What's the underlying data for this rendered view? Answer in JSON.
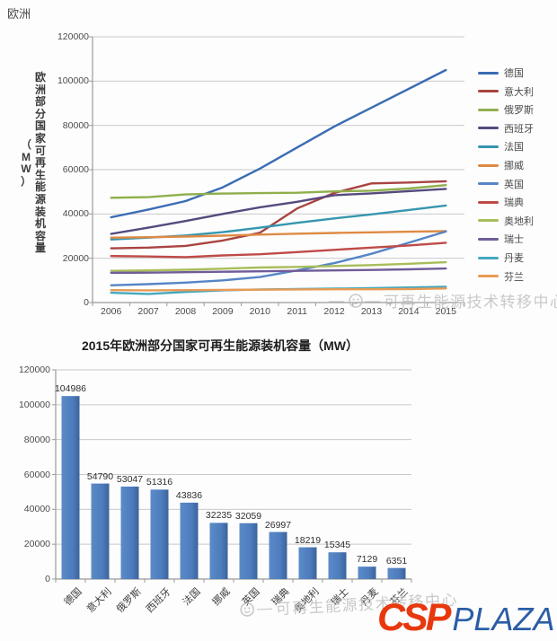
{
  "page": {
    "region_label": "欧洲"
  },
  "watermark": {
    "dash": "—",
    "text": "可再生能源技术转移中心"
  },
  "brand": {
    "csp": "CSP",
    "plaza": "PLAZA",
    "csp_color": "#E8380D",
    "plaza_color": "#2B5DA7"
  },
  "chart_data": [
    {
      "type": "line",
      "title": "",
      "ylabel": "欧洲部分国家可再生能源装机容量",
      "ylabel_unit": "（MW）",
      "x": [
        "2006",
        "2007",
        "2008",
        "2009",
        "2010",
        "2011",
        "2012",
        "2013",
        "2014",
        "2015"
      ],
      "ylim": [
        0,
        120000
      ],
      "ytick_step": 20000,
      "grid": true,
      "legend_position": "right",
      "series": [
        {
          "name": "德国",
          "color": "#3B6CB4",
          "values": [
            38500,
            42000,
            45800,
            52000,
            60500,
            70000,
            79500,
            88000,
            96500,
            104986
          ]
        },
        {
          "name": "意大利",
          "color": "#A94441",
          "values": [
            24500,
            24800,
            25600,
            28000,
            31500,
            42500,
            49500,
            53800,
            54200,
            54790
          ]
        },
        {
          "name": "俄罗斯",
          "color": "#8FAF4C",
          "values": [
            47300,
            47600,
            48800,
            49200,
            49400,
            49600,
            50200,
            50500,
            51500,
            53047
          ]
        },
        {
          "name": "西班牙",
          "color": "#564A7D",
          "values": [
            31000,
            33800,
            36800,
            40000,
            43000,
            45500,
            48500,
            49300,
            50300,
            51316
          ]
        },
        {
          "name": "法国",
          "color": "#3596AE",
          "values": [
            28500,
            29300,
            30300,
            31800,
            33800,
            36000,
            38000,
            39800,
            41800,
            43836
          ]
        },
        {
          "name": "挪威",
          "color": "#DE8A44",
          "values": [
            29300,
            29500,
            29800,
            30200,
            30700,
            31100,
            31400,
            31700,
            32000,
            32235
          ]
        },
        {
          "name": "英国",
          "color": "#5585C5",
          "values": [
            7800,
            8300,
            9000,
            10000,
            11500,
            14500,
            17800,
            22000,
            27000,
            32059
          ]
        },
        {
          "name": "瑞典",
          "color": "#BE4B48",
          "values": [
            21000,
            20800,
            20500,
            21300,
            21800,
            22800,
            23800,
            24800,
            25800,
            26997
          ]
        },
        {
          "name": "奥地利",
          "color": "#A8BD5A",
          "values": [
            14300,
            14500,
            14800,
            15300,
            15800,
            16100,
            16500,
            16900,
            17500,
            18219
          ]
        },
        {
          "name": "瑞士",
          "color": "#6F5C99",
          "values": [
            13400,
            13500,
            13700,
            13900,
            14100,
            14300,
            14500,
            14700,
            15000,
            15345
          ]
        },
        {
          "name": "丹麦",
          "color": "#45A8C0",
          "values": [
            4400,
            3900,
            4800,
            5500,
            5900,
            6100,
            6300,
            6500,
            6800,
            7129
          ]
        },
        {
          "name": "芬兰",
          "color": "#E89A54",
          "values": [
            5600,
            5500,
            5600,
            5700,
            5800,
            5900,
            6000,
            6000,
            6100,
            6351
          ]
        }
      ]
    },
    {
      "type": "bar",
      "title": "2015年欧洲部分国家可再生能源装机容量（MW）",
      "categories": [
        "德国",
        "意大利",
        "俄罗斯",
        "西班牙",
        "法国",
        "挪威",
        "英国",
        "瑞典",
        "奥地利",
        "瑞士",
        "丹麦",
        "芬兰"
      ],
      "values": [
        104986,
        54790,
        53047,
        51316,
        43836,
        32235,
        32059,
        26997,
        18219,
        15345,
        7129,
        6351
      ],
      "ylim": [
        0,
        120000
      ],
      "ytick_step": 20000,
      "grid": true,
      "data_labels": true,
      "bar_color": "#4E7DBE"
    }
  ]
}
